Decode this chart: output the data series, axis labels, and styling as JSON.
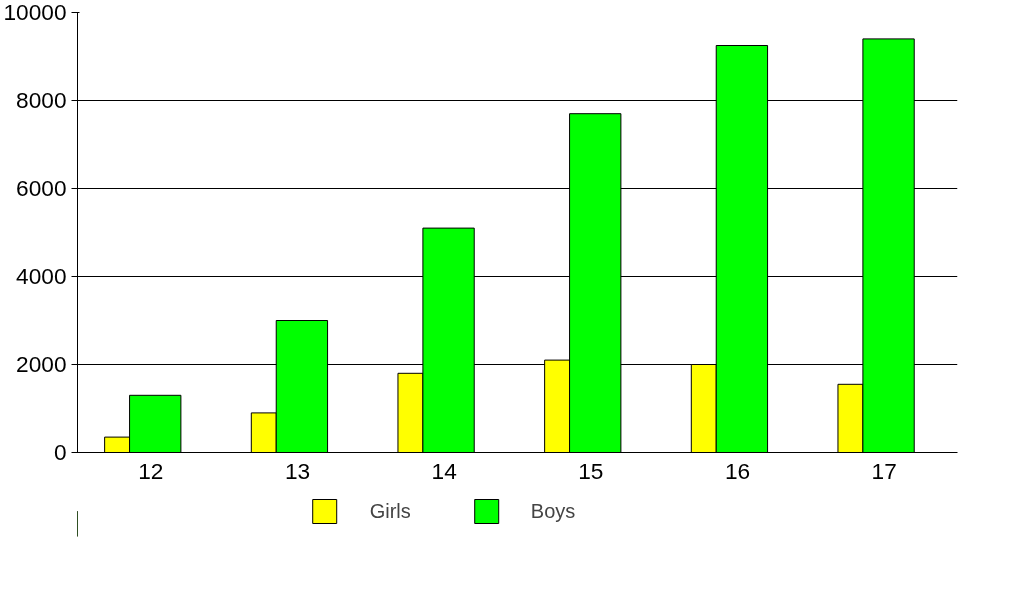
{
  "chart_data": {
    "type": "bar",
    "categories": [
      "12",
      "13",
      "14",
      "15",
      "16",
      "17"
    ],
    "series": [
      {
        "name": "Girls",
        "color": "#ffff00",
        "values": [
          350,
          900,
          1800,
          2100,
          2000,
          1550
        ]
      },
      {
        "name": "Boys",
        "color": "#00ff00",
        "values": [
          1300,
          3000,
          5100,
          7700,
          9250,
          9400
        ]
      }
    ],
    "ylim": [
      0,
      10000
    ],
    "yticks": [
      0,
      2000,
      4000,
      6000,
      8000,
      10000
    ],
    "grid": "y",
    "legend": "bottom"
  }
}
